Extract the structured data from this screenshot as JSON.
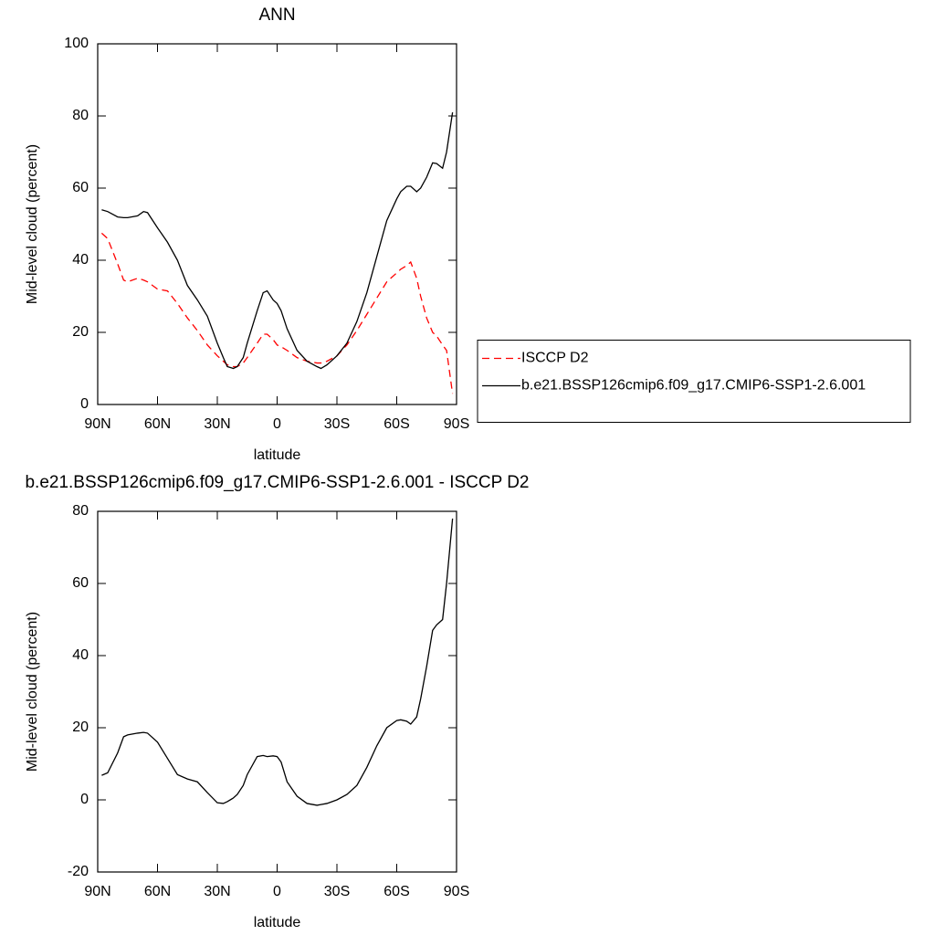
{
  "chart_data": [
    {
      "type": "line",
      "title": "ANN",
      "xlabel": "latitude",
      "ylabel": "Mid-level cloud (percent)",
      "x": [
        88,
        85,
        80,
        77,
        75,
        70,
        67,
        65,
        60,
        55,
        50,
        45,
        40,
        35,
        30,
        27,
        25,
        22,
        20,
        17,
        15,
        10,
        7,
        5,
        2,
        0,
        -2,
        -5,
        -10,
        -15,
        -20,
        -22,
        -25,
        -30,
        -35,
        -40,
        -45,
        -50,
        -55,
        -60,
        -62,
        -65,
        -67,
        -70,
        -72,
        -75,
        -78,
        -80,
        -83,
        -85,
        -88
      ],
      "series": [
        {
          "name": "ISCCP D2",
          "color": "#ff0000",
          "style": "dashed",
          "values": [
            47.5,
            46,
            39,
            34.5,
            34,
            35,
            34.5,
            34,
            32,
            31.5,
            28,
            24,
            20.5,
            16.5,
            13.5,
            12,
            11,
            10.5,
            10.5,
            11.5,
            13,
            17,
            19.5,
            19.5,
            18,
            16.5,
            16,
            15,
            13,
            12,
            11.5,
            11.5,
            12,
            13.5,
            16.5,
            20.5,
            25,
            29.5,
            34,
            36.5,
            37.5,
            38.5,
            39.5,
            35,
            30,
            24,
            20,
            19,
            16.5,
            15,
            3
          ]
        },
        {
          "name": "b.e21.BSSP126cmip6.f09_g17.CMIP6-SSP1-2.6.001",
          "color": "#000000",
          "style": "solid",
          "values": [
            54,
            53.5,
            52,
            51.8,
            51.8,
            52.3,
            53.5,
            53.2,
            49,
            45,
            40,
            33,
            29,
            24.5,
            17,
            13,
            10.5,
            10,
            10.5,
            13,
            17,
            26,
            31,
            31.5,
            29,
            28,
            26,
            21,
            15,
            12,
            10.5,
            10,
            11,
            13.5,
            17,
            23,
            31,
            41,
            51,
            57,
            59,
            60.5,
            60.5,
            59,
            60,
            63,
            67,
            66.8,
            65.5,
            70,
            81
          ]
        }
      ],
      "xlim": [
        90,
        -90
      ],
      "xticks": [
        {
          "value": 90,
          "label": "90N"
        },
        {
          "value": 60,
          "label": "60N"
        },
        {
          "value": 30,
          "label": "30N"
        },
        0,
        {
          "value": -30,
          "label": "30S"
        },
        {
          "value": -60,
          "label": "60S"
        },
        {
          "value": -90,
          "label": "90S"
        }
      ],
      "ylim": [
        0,
        100
      ],
      "yticks": [
        0,
        20,
        40,
        60,
        80,
        100
      ],
      "legend": "right"
    },
    {
      "type": "line",
      "title": "b.e21.BSSP126cmip6.f09_g17.CMIP6-SSP1-2.6.001 - ISCCP D2",
      "xlabel": "latitude",
      "ylabel": "Mid-level cloud (percent)",
      "x": [
        88,
        85,
        80,
        77,
        75,
        70,
        67,
        65,
        60,
        55,
        50,
        45,
        40,
        35,
        30,
        27,
        25,
        22,
        20,
        17,
        15,
        10,
        7,
        5,
        2,
        0,
        -2,
        -5,
        -10,
        -15,
        -20,
        -22,
        -25,
        -30,
        -35,
        -40,
        -45,
        -50,
        -55,
        -60,
        -62,
        -65,
        -67,
        -70,
        -72,
        -75,
        -78,
        -80,
        -83,
        -85,
        -88
      ],
      "values": [
        6.8,
        7.5,
        13,
        17.5,
        18,
        18.5,
        18.7,
        18.5,
        16,
        11.5,
        7,
        5.8,
        5,
        2,
        -0.8,
        -1,
        -0.5,
        0.5,
        1.5,
        4,
        7,
        12,
        12.3,
        12,
        12.2,
        12,
        10.5,
        5,
        1,
        -1,
        -1.5,
        -1.3,
        -1,
        0,
        1.5,
        4,
        9,
        15,
        20,
        22,
        22.2,
        21.8,
        21,
        23,
        28,
        37,
        47,
        48.5,
        50,
        60,
        78
      ],
      "color": "#000000",
      "xlim": [
        90,
        -90
      ],
      "xticks": [
        {
          "value": 90,
          "label": "90N"
        },
        {
          "value": 60,
          "label": "60N"
        },
        {
          "value": 30,
          "label": "30N"
        },
        0,
        {
          "value": -30,
          "label": "30S"
        },
        {
          "value": -60,
          "label": "60S"
        },
        {
          "value": -90,
          "label": "90S"
        }
      ],
      "ylim": [
        -20,
        80
      ],
      "yticks": [
        -20,
        0,
        20,
        40,
        60,
        80
      ]
    }
  ]
}
